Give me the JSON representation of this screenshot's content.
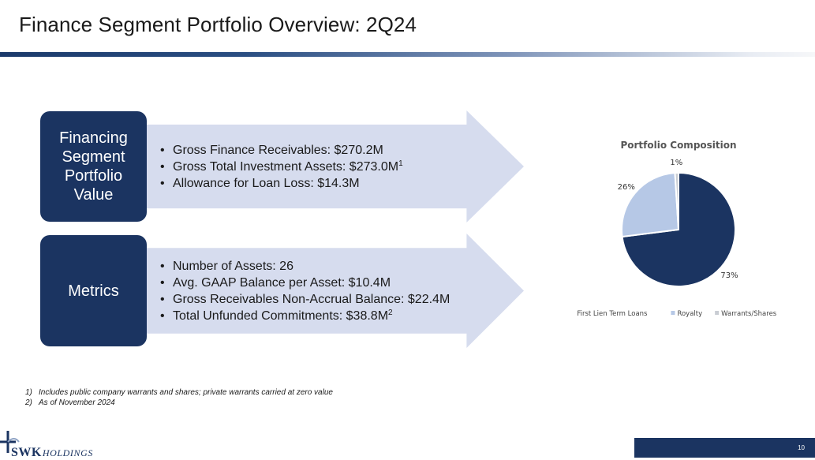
{
  "slide": {
    "title": "Finance Segment Portfolio Overview: 2Q24",
    "page_number": "10"
  },
  "section1": {
    "label": "Financing Segment Portfolio Value",
    "bullets": [
      {
        "text": "Gross Finance Receivables: $270.2M",
        "sup": ""
      },
      {
        "text": "Gross Total Investment Assets: $273.0M",
        "sup": "1"
      },
      {
        "text": "Allowance for Loan Loss: $14.3M",
        "sup": ""
      }
    ]
  },
  "section2": {
    "label": "Metrics",
    "bullets": [
      {
        "text": "Number of Assets: 26",
        "sup": ""
      },
      {
        "text": "Avg. GAAP Balance per Asset: $10.4M",
        "sup": ""
      },
      {
        "text": "Gross Receivables Non-Accrual Balance: $22.4M",
        "sup": ""
      },
      {
        "text": "Total Unfunded Commitments: $38.8M",
        "sup": "2"
      }
    ]
  },
  "chart_data": {
    "type": "pie",
    "title": "Portfolio Composition",
    "legend_position": "bottom",
    "slices": [
      {
        "name": "First Lien Term Loans",
        "value": 73,
        "label": "73%",
        "color": "#1b3461"
      },
      {
        "name": "Royalty",
        "value": 26,
        "label": "26%",
        "color": "#b6c8e6"
      },
      {
        "name": "Warrants/Shares",
        "value": 1,
        "label": "1%",
        "color": "#c9cdd3"
      }
    ]
  },
  "footnotes": [
    {
      "num": "1)",
      "text": "Includes public company warrants and shares; private warrants carried at zero value"
    },
    {
      "num": "2)",
      "text": "As of November 2024"
    }
  ],
  "logo": {
    "main": "SWK",
    "sub": "HOLDINGS"
  },
  "colors": {
    "navy": "#1b3461",
    "arrow_fill": "#d6dcee"
  }
}
